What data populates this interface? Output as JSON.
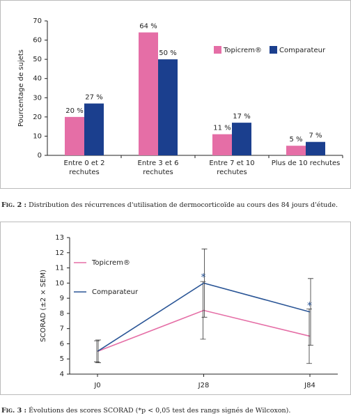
{
  "chart_data": [
    {
      "type": "bar",
      "y_label": "Pourcentage de sujets",
      "categories": [
        "Entre 0 et 2 rechutes",
        "Entre 3 et 6 rechutes",
        "Entre 7 et 10 rechutes",
        "Plus de 10 rechutes"
      ],
      "series": [
        {
          "name": "Topicrem®",
          "color": "#e56ea6",
          "values": [
            20,
            64,
            11,
            5
          ],
          "value_labels": [
            "20 %",
            "64 %",
            "11 %",
            "5 %"
          ]
        },
        {
          "name": "Comparateur",
          "color": "#1b3f8e",
          "values": [
            27,
            50,
            17,
            7
          ],
          "value_labels": [
            "27 %",
            "50 %",
            "17 %",
            "7 %"
          ]
        }
      ],
      "ylim": [
        0,
        70
      ],
      "yticks": [
        0,
        10,
        20,
        30,
        40,
        50,
        60,
        70
      ],
      "legend": "upper right",
      "caption_label": "Fig. 2 :",
      "caption": "Distribution des récurrences d'utilisation de dermocorticoïde au cours des 84 jours d'étude."
    },
    {
      "type": "line",
      "y_label": "SCORAD (±2 × SEM)",
      "categories": [
        "J0",
        "J28",
        "J84"
      ],
      "series": [
        {
          "name": "Topicrem®",
          "color": "#e56ea6",
          "values": [
            5.5,
            8.2,
            6.5
          ],
          "errors": [
            0.7,
            1.9,
            1.8
          ]
        },
        {
          "name": "Comparateur",
          "color": "#2a5596",
          "values": [
            5.5,
            10,
            8.1
          ],
          "errors": [
            0.75,
            2.25,
            2.2
          ]
        }
      ],
      "ylim": [
        4,
        13
      ],
      "yticks": [
        4,
        5,
        6,
        7,
        8,
        9,
        10,
        11,
        12,
        13
      ],
      "annotations": [
        {
          "text": "*",
          "x": "J28"
        },
        {
          "text": "*",
          "x": "J84"
        }
      ],
      "legend": "upper left",
      "caption_label": "Fig. 3 :",
      "caption": "Évolutions des scores SCORAD (*p < 0,05 test des rangs signés de Wilcoxon)."
    }
  ]
}
